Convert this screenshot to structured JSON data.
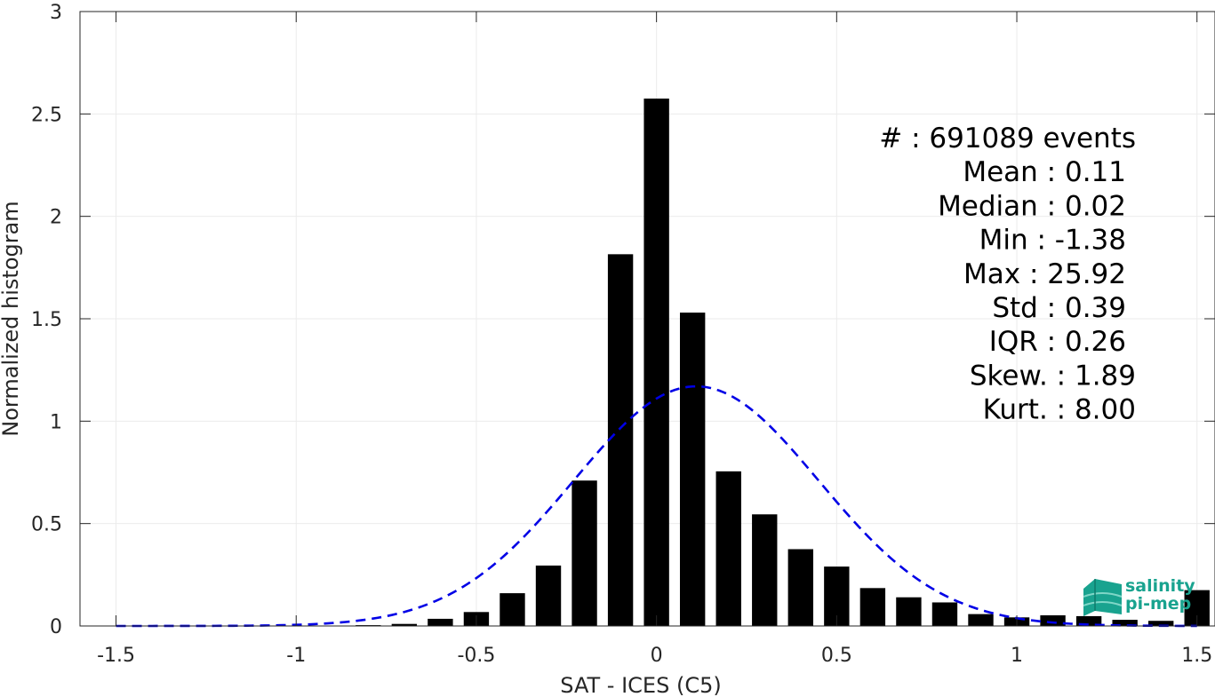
{
  "chart_data": {
    "type": "bar",
    "xlabel": "SAT - ICES (C5)",
    "ylabel": "Normalized histogram",
    "xlim": [
      -1.6,
      1.55
    ],
    "ylim": [
      0,
      3
    ],
    "grid": true,
    "xticks": [
      "-1.5",
      "-1",
      "-0.5",
      "0",
      "0.5",
      "1",
      "1.5"
    ],
    "xtick_values": [
      -1.5,
      -1,
      -0.5,
      0,
      0.5,
      1,
      1.5
    ],
    "yticks": [
      "0",
      "0.5",
      "1",
      "1.5",
      "2",
      "2.5",
      "3"
    ],
    "ytick_values": [
      0,
      0.5,
      1,
      1.5,
      2,
      2.5,
      3
    ],
    "bar_width": 0.07,
    "bars": {
      "x": [
        -1.5,
        -1.4,
        -1.3,
        -1.2,
        -1.1,
        -1.0,
        -0.9,
        -0.8,
        -0.7,
        -0.6,
        -0.5,
        -0.4,
        -0.3,
        -0.2,
        -0.1,
        0.0,
        0.1,
        0.2,
        0.3,
        0.4,
        0.5,
        0.6,
        0.7,
        0.8,
        0.9,
        1.0,
        1.1,
        1.2,
        1.3,
        1.4,
        1.5
      ],
      "values": [
        0,
        0,
        0,
        0,
        0,
        0.001,
        0.002,
        0.004,
        0.01,
        0.035,
        0.068,
        0.16,
        0.295,
        0.71,
        1.815,
        2.575,
        1.53,
        0.755,
        0.545,
        0.375,
        0.29,
        0.185,
        0.14,
        0.115,
        0.058,
        0.042,
        0.052,
        0.048,
        0.03,
        0.025,
        0.175
      ]
    },
    "fit": {
      "name": "Gaussian",
      "style": "dashed",
      "color": "#0000e6",
      "mean": 0.11,
      "std": 0.34,
      "peak": 1.17,
      "range": [
        -1.5,
        1.5
      ]
    },
    "stats": [
      {
        "label": "#  : 691089 events"
      },
      {
        "label": "Mean : 0.11"
      },
      {
        "label": "Median : 0.02"
      },
      {
        "label": "Min : -1.38"
      },
      {
        "label": "Max : 25.92"
      },
      {
        "label": "Std : 0.39"
      },
      {
        "label": "IQR : 0.26"
      },
      {
        "label": "Skew. : 1.89"
      },
      {
        "label": "Kurt. : 8.00"
      }
    ]
  },
  "logo": {
    "line1": "salinity",
    "line2": "pi-mep"
  },
  "colors": {
    "bar": "#000000",
    "fit": "#0000e6",
    "grid": "#ebebeb",
    "axis": "#262626",
    "logo": "#19a38f"
  }
}
